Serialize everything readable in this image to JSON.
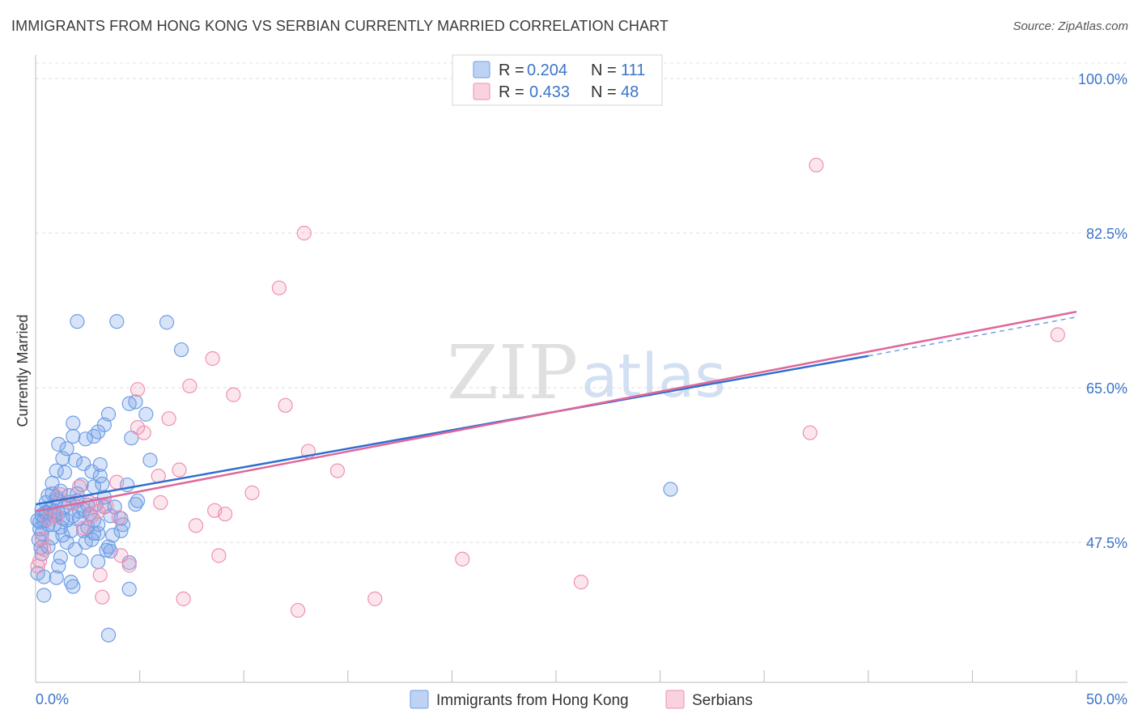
{
  "chart_data": {
    "type": "scatter",
    "title": "IMMIGRANTS FROM HONG KONG VS SERBIAN CURRENTLY MARRIED CORRELATION CHART",
    "source": "Source: ZipAtlas.com",
    "ylabel": "Currently Married",
    "xlabel": "",
    "xlim": [
      0,
      50
    ],
    "ylim": [
      30.5,
      102
    ],
    "x_tick_labels": {
      "min": "0.0%",
      "max": "50.0%"
    },
    "y_ticks": [
      {
        "value": 100.0,
        "label": "100.0%"
      },
      {
        "value": 82.5,
        "label": "82.5%"
      },
      {
        "value": 65.0,
        "label": "65.0%"
      },
      {
        "value": 47.5,
        "label": "47.5%"
      }
    ],
    "legend": [
      {
        "r_label": "R =",
        "r": "0.204",
        "n_label": "N =",
        "n": "111",
        "color": "#6f9ee6"
      },
      {
        "r_label": "R =",
        "r": "0.433",
        "n_label": "N =",
        "n": "48",
        "color": "#f08fb0"
      }
    ],
    "watermark": {
      "zip": "ZIP",
      "atlas": "atlas"
    },
    "series": [
      {
        "name": "Immigrants from Hong Kong",
        "color": "#6f9ee6",
        "trend": {
          "x": [
            0,
            40
          ],
          "y": [
            51.8,
            68.6
          ],
          "dashed_to_x": 50,
          "dashed_y": 73.0
        },
        "points": [
          [
            2.0,
            72.5
          ],
          [
            3.9,
            72.5
          ],
          [
            6.3,
            72.4
          ],
          [
            7.0,
            69.3
          ],
          [
            4.5,
            63.2
          ],
          [
            5.3,
            62.0
          ],
          [
            4.8,
            63.4
          ],
          [
            3.5,
            62.0
          ],
          [
            3.3,
            60.8
          ],
          [
            1.8,
            61.0
          ],
          [
            3.0,
            60.0
          ],
          [
            2.8,
            59.5
          ],
          [
            1.8,
            59.5
          ],
          [
            1.1,
            58.6
          ],
          [
            2.4,
            59.2
          ],
          [
            4.6,
            59.3
          ],
          [
            1.5,
            58.1
          ],
          [
            1.3,
            57.0
          ],
          [
            1.9,
            56.8
          ],
          [
            2.3,
            56.4
          ],
          [
            3.1,
            56.3
          ],
          [
            5.5,
            56.8
          ],
          [
            1.0,
            55.6
          ],
          [
            2.7,
            55.5
          ],
          [
            3.1,
            55.0
          ],
          [
            1.4,
            55.4
          ],
          [
            0.8,
            54.2
          ],
          [
            1.2,
            53.3
          ],
          [
            2.2,
            54.0
          ],
          [
            3.2,
            54.1
          ],
          [
            4.4,
            54.0
          ],
          [
            2.8,
            53.8
          ],
          [
            0.6,
            52.8
          ],
          [
            1.0,
            52.6
          ],
          [
            1.6,
            52.0
          ],
          [
            2.0,
            52.2
          ],
          [
            2.5,
            51.7
          ],
          [
            3.3,
            51.5
          ],
          [
            4.9,
            52.2
          ],
          [
            4.8,
            51.8
          ],
          [
            0.3,
            51.2
          ],
          [
            0.5,
            50.8
          ],
          [
            0.9,
            50.5
          ],
          [
            1.3,
            50.2
          ],
          [
            1.8,
            50.5
          ],
          [
            2.1,
            50.2
          ],
          [
            2.8,
            50.0
          ],
          [
            3.6,
            50.5
          ],
          [
            4.1,
            50.2
          ],
          [
            0.2,
            49.8
          ],
          [
            0.6,
            49.5
          ],
          [
            0.9,
            49.5
          ],
          [
            1.2,
            49.2
          ],
          [
            1.7,
            48.8
          ],
          [
            2.3,
            48.8
          ],
          [
            2.8,
            48.5
          ],
          [
            3.0,
            48.5
          ],
          [
            4.1,
            48.8
          ],
          [
            0.3,
            48.5
          ],
          [
            0.8,
            48.0
          ],
          [
            1.5,
            47.5
          ],
          [
            2.4,
            47.5
          ],
          [
            3.5,
            47.0
          ],
          [
            3.6,
            46.5
          ],
          [
            0.3,
            46.2
          ],
          [
            1.2,
            45.8
          ],
          [
            3.0,
            45.3
          ],
          [
            2.2,
            45.4
          ],
          [
            4.5,
            45.2
          ],
          [
            1.1,
            44.8
          ],
          [
            0.4,
            43.6
          ],
          [
            1.0,
            43.5
          ],
          [
            1.7,
            43.0
          ],
          [
            1.8,
            42.5
          ],
          [
            0.4,
            41.5
          ],
          [
            4.5,
            42.2
          ],
          [
            3.5,
            37.0
          ],
          [
            30.5,
            53.5
          ],
          [
            0.1,
            50.0
          ],
          [
            0.2,
            49.0
          ],
          [
            0.3,
            50.6
          ],
          [
            0.4,
            49.9
          ],
          [
            0.5,
            50.9
          ],
          [
            0.7,
            51.2
          ],
          [
            0.9,
            51.0
          ],
          [
            1.1,
            50.8
          ],
          [
            1.4,
            51.5
          ],
          [
            1.6,
            52.8
          ],
          [
            2.0,
            53.0
          ],
          [
            2.3,
            51.2
          ],
          [
            2.6,
            50.7
          ],
          [
            2.9,
            51.8
          ],
          [
            3.3,
            52.6
          ],
          [
            3.8,
            51.5
          ],
          [
            4.2,
            49.5
          ],
          [
            0.15,
            47.8
          ],
          [
            0.25,
            46.9
          ],
          [
            0.6,
            47.0
          ],
          [
            1.3,
            48.3
          ],
          [
            1.9,
            46.7
          ],
          [
            2.7,
            47.8
          ],
          [
            3.4,
            46.6
          ],
          [
            0.5,
            52.0
          ],
          [
            1.0,
            52.3
          ],
          [
            1.5,
            50.0
          ],
          [
            2.1,
            51.0
          ],
          [
            2.5,
            49.2
          ],
          [
            3.0,
            49.5
          ],
          [
            3.7,
            48.3
          ],
          [
            0.8,
            53.0
          ],
          [
            0.1,
            44.0
          ]
        ]
      },
      {
        "name": "Serbians",
        "color": "#f08fb0",
        "trend": {
          "x": [
            0,
            50
          ],
          "y": [
            51.0,
            73.6
          ]
        },
        "points": [
          [
            37.5,
            90.2
          ],
          [
            12.9,
            82.5
          ],
          [
            11.7,
            76.3
          ],
          [
            8.5,
            68.3
          ],
          [
            7.4,
            65.2
          ],
          [
            4.9,
            64.8
          ],
          [
            9.5,
            64.2
          ],
          [
            12.0,
            63.0
          ],
          [
            6.4,
            61.5
          ],
          [
            4.9,
            60.5
          ],
          [
            5.2,
            59.9
          ],
          [
            37.2,
            59.9
          ],
          [
            13.1,
            57.8
          ],
          [
            14.5,
            55.6
          ],
          [
            6.9,
            55.7
          ],
          [
            5.9,
            55.0
          ],
          [
            3.9,
            54.3
          ],
          [
            2.1,
            53.8
          ],
          [
            10.4,
            53.1
          ],
          [
            2.6,
            52.0
          ],
          [
            6.0,
            52.0
          ],
          [
            3.4,
            51.6
          ],
          [
            8.6,
            51.1
          ],
          [
            9.1,
            50.7
          ],
          [
            2.7,
            50.5
          ],
          [
            4.0,
            50.3
          ],
          [
            7.7,
            49.4
          ],
          [
            0.3,
            47.9
          ],
          [
            0.4,
            46.7
          ],
          [
            8.8,
            46.0
          ],
          [
            4.1,
            46.0
          ],
          [
            20.5,
            45.6
          ],
          [
            0.2,
            45.4
          ],
          [
            4.5,
            44.9
          ],
          [
            3.1,
            43.8
          ],
          [
            26.2,
            43.0
          ],
          [
            3.2,
            41.3
          ],
          [
            7.1,
            41.1
          ],
          [
            16.3,
            41.1
          ],
          [
            12.6,
            39.8
          ],
          [
            49.1,
            71.0
          ],
          [
            1.2,
            52.9
          ],
          [
            1.8,
            51.9
          ],
          [
            1.0,
            50.4
          ],
          [
            0.6,
            50.1
          ],
          [
            2.3,
            49.1
          ],
          [
            3.0,
            51.0
          ],
          [
            0.1,
            44.8
          ]
        ]
      }
    ]
  }
}
